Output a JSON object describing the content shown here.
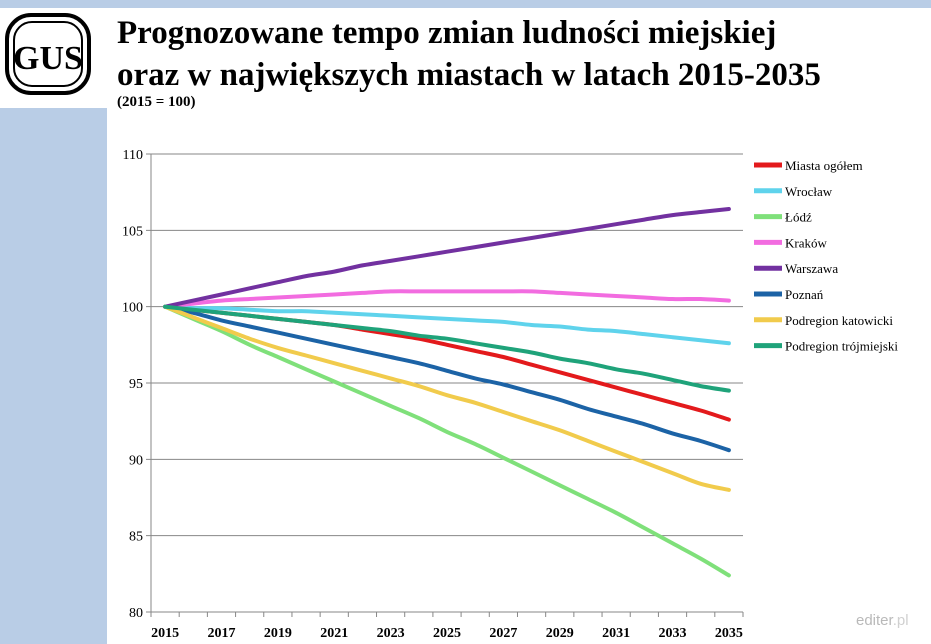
{
  "header": {
    "title_line1": "Prognozowane tempo zmian ludności miejskiej",
    "title_line2": "oraz w największych miastach w latach 2015-2035",
    "subtitle": "(2015 = 100)"
  },
  "logo": {
    "text": "GUS"
  },
  "watermark": {
    "brand": "editer",
    "tld": ".pl"
  },
  "colors": {
    "band": "#b9cde6",
    "grid": "#878787",
    "axis": "#878787"
  },
  "chart_data": {
    "type": "line",
    "title": "Prognozowane tempo zmian ludności miejskiej oraz w największych miastach w latach 2015-2035",
    "xlabel": "",
    "ylabel": "",
    "x": [
      2015,
      2016,
      2017,
      2018,
      2019,
      2020,
      2021,
      2022,
      2023,
      2024,
      2025,
      2026,
      2027,
      2028,
      2029,
      2030,
      2031,
      2032,
      2033,
      2034,
      2035
    ],
    "x_ticks": [
      "2015",
      "2017",
      "2019",
      "2021",
      "2023",
      "2025",
      "2027",
      "2029",
      "2031",
      "2033",
      "2035"
    ],
    "y_ticks": [
      "80",
      "85",
      "90",
      "95",
      "100",
      "105",
      "110"
    ],
    "ylim": [
      80,
      110
    ],
    "grid": true,
    "legend_position": "right",
    "series": [
      {
        "name": "Miasta ogółem",
        "color": "#e31a1c",
        "values": [
          100,
          99.8,
          99.6,
          99.4,
          99.2,
          99.0,
          98.8,
          98.5,
          98.2,
          97.9,
          97.5,
          97.1,
          96.7,
          96.2,
          95.7,
          95.2,
          94.7,
          94.2,
          93.7,
          93.2,
          92.6
        ]
      },
      {
        "name": "Wrocław",
        "color": "#5fd3ec",
        "values": [
          100,
          99.9,
          99.9,
          99.8,
          99.7,
          99.7,
          99.6,
          99.5,
          99.4,
          99.3,
          99.2,
          99.1,
          99.0,
          98.8,
          98.7,
          98.5,
          98.4,
          98.2,
          98.0,
          97.8,
          97.6
        ]
      },
      {
        "name": "Łódź",
        "color": "#7fe07a",
        "values": [
          100,
          99.2,
          98.4,
          97.5,
          96.7,
          95.9,
          95.1,
          94.3,
          93.5,
          92.7,
          91.8,
          91.0,
          90.1,
          89.2,
          88.3,
          87.4,
          86.5,
          85.5,
          84.5,
          83.5,
          82.4
        ]
      },
      {
        "name": "Kraków",
        "color": "#f26ce0",
        "values": [
          100,
          100.2,
          100.4,
          100.5,
          100.6,
          100.7,
          100.8,
          100.9,
          101.0,
          101.0,
          101.0,
          101.0,
          101.0,
          101.0,
          100.9,
          100.8,
          100.7,
          100.6,
          100.5,
          100.5,
          100.4
        ]
      },
      {
        "name": "Warszawa",
        "color": "#7231a0",
        "values": [
          100,
          100.4,
          100.8,
          101.2,
          101.6,
          102.0,
          102.3,
          102.7,
          103.0,
          103.3,
          103.6,
          103.9,
          104.2,
          104.5,
          104.8,
          105.1,
          105.4,
          105.7,
          106.0,
          106.2,
          106.4
        ]
      },
      {
        "name": "Poznań",
        "color": "#1c63a6",
        "values": [
          100,
          99.6,
          99.1,
          98.7,
          98.3,
          97.9,
          97.5,
          97.1,
          96.7,
          96.3,
          95.8,
          95.3,
          94.9,
          94.4,
          93.9,
          93.3,
          92.8,
          92.3,
          91.7,
          91.2,
          90.6
        ]
      },
      {
        "name": "Podregion katowicki",
        "color": "#f1cb4c",
        "values": [
          100,
          99.3,
          98.6,
          97.9,
          97.3,
          96.8,
          96.3,
          95.8,
          95.3,
          94.8,
          94.2,
          93.7,
          93.1,
          92.5,
          91.9,
          91.2,
          90.5,
          89.8,
          89.1,
          88.4,
          88.0
        ]
      },
      {
        "name": "Podregion trójmiejski",
        "color": "#1fa37a",
        "values": [
          100,
          99.8,
          99.6,
          99.4,
          99.2,
          99.0,
          98.8,
          98.6,
          98.4,
          98.1,
          97.9,
          97.6,
          97.3,
          97.0,
          96.6,
          96.3,
          95.9,
          95.6,
          95.2,
          94.8,
          94.5
        ]
      }
    ]
  }
}
